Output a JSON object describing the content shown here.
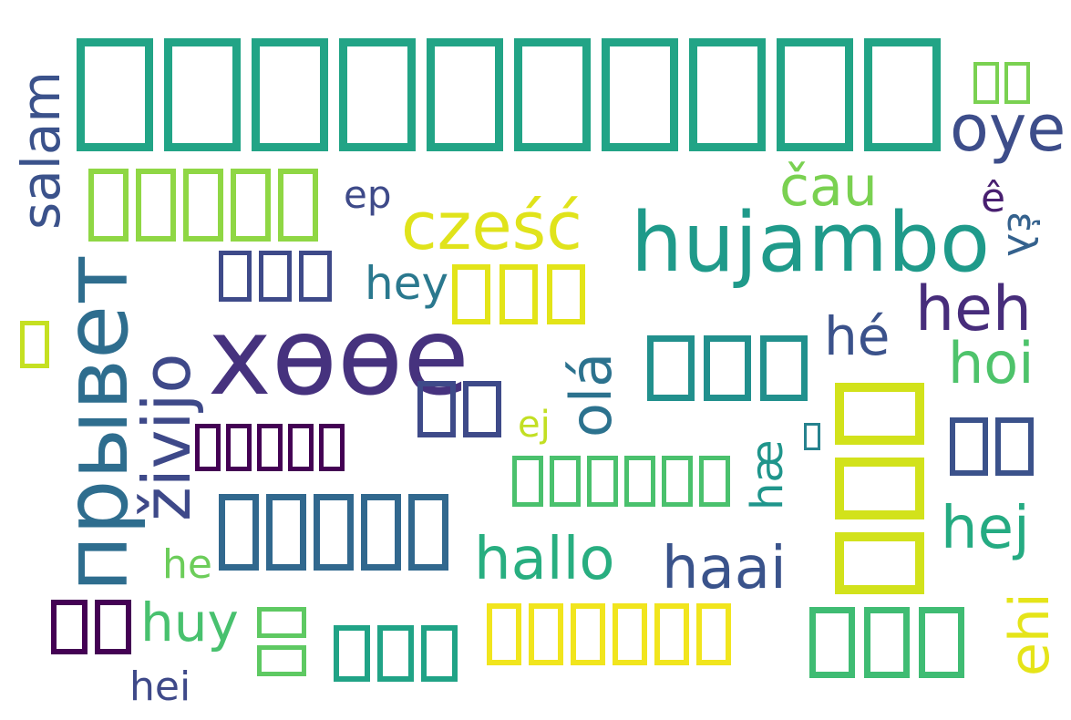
{
  "words": [
    {
      "id": "tofu-headline",
      "text": "□□□□□□□□□□□□",
      "color": "#22a486"
    },
    {
      "id": "salam",
      "text": "salam",
      "color": "#3b528b"
    },
    {
      "id": "tofu-left-5",
      "text": "□□□□□",
      "color": "#8fd744"
    },
    {
      "id": "ep",
      "text": "ep",
      "color": "#3e4a89"
    },
    {
      "id": "czesc",
      "text": "cześć",
      "color": "#e0e31b"
    },
    {
      "id": "hujambo",
      "text": "hujambo",
      "color": "#1f9a8a"
    },
    {
      "id": "cau",
      "text": "čau",
      "color": "#7ad151"
    },
    {
      "id": "oye",
      "text": "oye",
      "color": "#3d4d8a"
    },
    {
      "id": "tofu-top-right",
      "text": "□□",
      "color": "#7ad151"
    },
    {
      "id": "e-circ",
      "text": "ê",
      "color": "#481f70"
    },
    {
      "id": "el",
      "text": "ἑλ",
      "color": "#34618d"
    },
    {
      "id": "tofu-3-a",
      "text": "□□□",
      "color": "#3e4a89"
    },
    {
      "id": "hey",
      "text": "hey",
      "color": "#2a788e"
    },
    {
      "id": "tofu-3-b",
      "text": "□□□",
      "color": "#e3e418"
    },
    {
      "id": "heh",
      "text": "heh",
      "color": "#472d7b"
    },
    {
      "id": "tofu-single-left",
      "text": "□",
      "color": "#c5e021"
    },
    {
      "id": "privet",
      "text": "прывет",
      "color": "#2e6d8e"
    },
    {
      "id": "zivijo",
      "text": "živijo",
      "color": "#3e4989"
    },
    {
      "id": "xoee",
      "text": "хөөе",
      "color": "#46327e"
    },
    {
      "id": "tofu-3-c",
      "text": "□□□",
      "color": "#21908d"
    },
    {
      "id": "he-acute",
      "text": "hé",
      "color": "#3b528b"
    },
    {
      "id": "hoi",
      "text": "hoi",
      "color": "#4ec36b"
    },
    {
      "id": "ola",
      "text": "olá",
      "color": "#2c728e"
    },
    {
      "id": "tofu-2-a",
      "text": "□□",
      "color": "#3e4a89"
    },
    {
      "id": "ej",
      "text": "ej",
      "color": "#c2df23"
    },
    {
      "id": "tofu-vertical-3",
      "text": "□□□",
      "color": "#d2e21b"
    },
    {
      "id": "tofu-2-b",
      "text": "□□",
      "color": "#3b528b"
    },
    {
      "id": "tofu-5-dark",
      "text": "□□□□□",
      "color": "#440154"
    },
    {
      "id": "tofu-6-green",
      "text": "□□□□□□",
      "color": "#4ac16d"
    },
    {
      "id": "ae",
      "text": "hæ",
      "color": "#1f958b"
    },
    {
      "id": "tofu-tiny",
      "text": "□",
      "color": "#26828e"
    },
    {
      "id": "tofu-5-blue",
      "text": "□□□□□",
      "color": "#31688e"
    },
    {
      "id": "hej",
      "text": "hej",
      "color": "#25ab82"
    },
    {
      "id": "hallo",
      "text": "hallo",
      "color": "#28ae80"
    },
    {
      "id": "haai",
      "text": "haai",
      "color": "#3a538b"
    },
    {
      "id": "he",
      "text": "he",
      "color": "#6ccd5a"
    },
    {
      "id": "ehi",
      "text": "ehi",
      "color": "#e5e419"
    },
    {
      "id": "tofu-2-purple",
      "text": "□□",
      "color": "#440154"
    },
    {
      "id": "huy",
      "text": "huy",
      "color": "#48c16e"
    },
    {
      "id": "tofu-2-vert-green",
      "text": "□□",
      "color": "#5ec962"
    },
    {
      "id": "tofu-3-d",
      "text": "□□□",
      "color": "#20a386"
    },
    {
      "id": "tofu-6-yellow",
      "text": "□□□□□□",
      "color": "#f1e51d"
    },
    {
      "id": "tofu-3-e",
      "text": "□□□",
      "color": "#3fbc73"
    },
    {
      "id": "hei",
      "text": "hei",
      "color": "#3e4989"
    }
  ]
}
